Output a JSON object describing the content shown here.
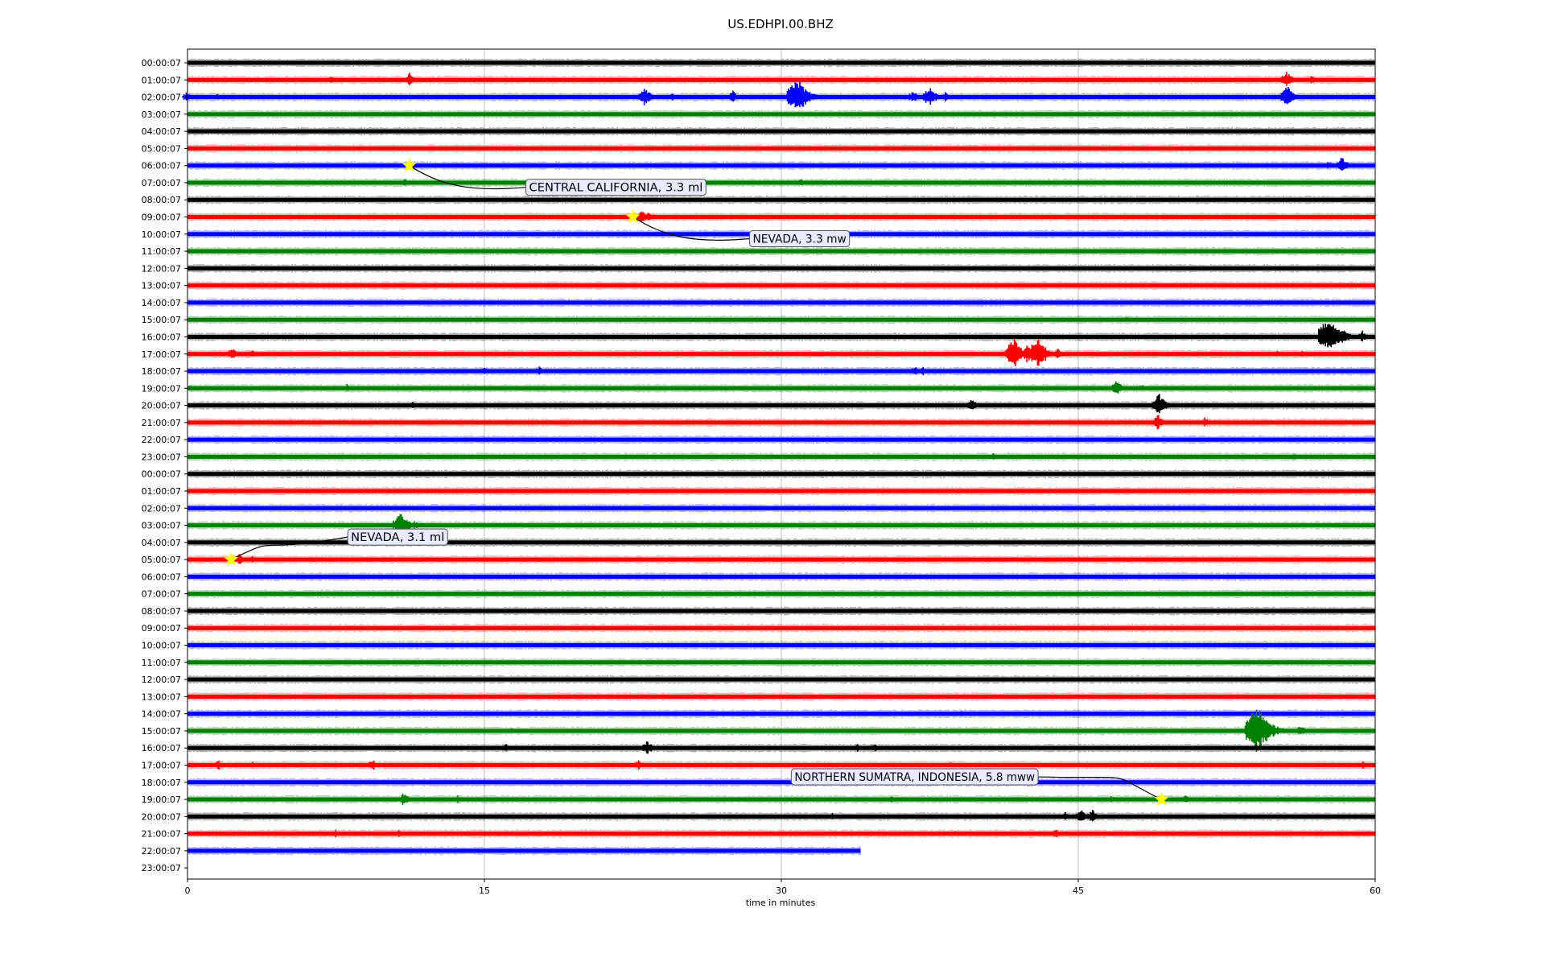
{
  "chart_data": {
    "type": "line",
    "title": "US.EDHPI.00.BHZ",
    "xlabel": "time in minutes",
    "xlim": [
      0,
      60
    ],
    "x_ticks": [
      "0",
      "15",
      "30",
      "45",
      "60"
    ],
    "grid": "vertical",
    "series_colors": [
      "#000000",
      "#ff0000",
      "#0000ff",
      "#008000"
    ],
    "traces": [
      {
        "label": "00:00:07",
        "events": []
      },
      {
        "label": "01:00:07",
        "events": [
          [
            7.4,
            0.5
          ],
          [
            11.4,
            0.8
          ],
          [
            49.9,
            0.3
          ],
          [
            55.7,
            1.0
          ],
          [
            56.9,
            0.5
          ]
        ]
      },
      {
        "label": "02:00:07",
        "events": [
          [
            0.1,
            0.6
          ],
          [
            1.6,
            0.4
          ],
          [
            23.3,
            1.2
          ],
          [
            23.9,
            0.3
          ],
          [
            24.6,
            0.4
          ],
          [
            27.7,
            0.7
          ],
          [
            31.1,
            2.2
          ],
          [
            31.7,
            0.6
          ],
          [
            36.8,
            0.7
          ],
          [
            37.7,
            1.2
          ],
          [
            38.4,
            0.6
          ],
          [
            55.8,
            1.3
          ]
        ]
      },
      {
        "label": "03:00:07",
        "events": []
      },
      {
        "label": "04:00:07",
        "events": []
      },
      {
        "label": "05:00:07",
        "events": []
      },
      {
        "label": "06:00:07",
        "events": [
          [
            11.2,
            0.3
          ],
          [
            57.8,
            0.5
          ],
          [
            58.5,
            1.0
          ]
        ]
      },
      {
        "label": "07:00:07",
        "events": [
          [
            11.1,
            0.4
          ],
          [
            31.1,
            0.4
          ]
        ]
      },
      {
        "label": "08:00:07",
        "events": []
      },
      {
        "label": "09:00:07",
        "events": [
          [
            22.5,
            0.3
          ],
          [
            23.1,
            0.8
          ],
          [
            23.4,
            0.5
          ]
        ]
      },
      {
        "label": "10:00:07",
        "events": []
      },
      {
        "label": "11:00:07",
        "events": []
      },
      {
        "label": "12:00:07",
        "events": []
      },
      {
        "label": "13:00:07",
        "events": []
      },
      {
        "label": "14:00:07",
        "events": []
      },
      {
        "label": "15:00:07",
        "events": [
          [
            47.6,
            0.4
          ],
          [
            48.8,
            0.3
          ]
        ]
      },
      {
        "label": "16:00:07",
        "events": [
          [
            58.0,
            2.4
          ],
          [
            58.6,
            0.8
          ],
          [
            59.5,
            0.7
          ]
        ]
      },
      {
        "label": "17:00:07",
        "events": [
          [
            2.4,
            0.8
          ],
          [
            3.4,
            0.5
          ],
          [
            42.0,
            1.8
          ],
          [
            42.6,
            1.1
          ],
          [
            43.2,
            1.9
          ],
          [
            44.1,
            0.6
          ],
          [
            53.4,
            0.4
          ],
          [
            55.2,
            0.5
          ],
          [
            56.4,
            0.4
          ]
        ]
      },
      {
        "label": "18:00:07",
        "events": [
          [
            15.1,
            0.5
          ],
          [
            17.9,
            0.6
          ],
          [
            36.9,
            0.6
          ],
          [
            37.3,
            0.5
          ]
        ]
      },
      {
        "label": "19:00:07",
        "events": [
          [
            0.3,
            0.4
          ],
          [
            8.2,
            0.5
          ],
          [
            47.1,
            0.9
          ],
          [
            48.3,
            0.4
          ]
        ]
      },
      {
        "label": "20:00:07",
        "events": [
          [
            11.5,
            0.4
          ],
          [
            39.8,
            0.8
          ],
          [
            49.3,
            1.3
          ]
        ]
      },
      {
        "label": "21:00:07",
        "events": [
          [
            49.2,
            0.9
          ],
          [
            51.5,
            0.6
          ]
        ]
      },
      {
        "label": "22:00:07",
        "events": [
          [
            20.5,
            0.4
          ]
        ]
      },
      {
        "label": "23:00:07",
        "events": [
          [
            40.8,
            0.4
          ],
          [
            56.0,
            0.4
          ]
        ]
      },
      {
        "label": "00:00:07",
        "events": [
          [
            27.0,
            0.3
          ]
        ]
      },
      {
        "label": "01:00:07",
        "events": [
          [
            3.0,
            0.4
          ]
        ]
      },
      {
        "label": "02:00:07",
        "events": [
          [
            17.9,
            0.3
          ],
          [
            30.6,
            0.3
          ]
        ]
      },
      {
        "label": "03:00:07",
        "events": [
          [
            11.0,
            1.5
          ],
          [
            11.6,
            0.5
          ]
        ]
      },
      {
        "label": "04:00:07",
        "events": []
      },
      {
        "label": "05:00:07",
        "events": [
          [
            2.2,
            0.3
          ],
          [
            2.8,
            0.7
          ],
          [
            3.4,
            0.4
          ]
        ]
      },
      {
        "label": "06:00:07",
        "events": []
      },
      {
        "label": "07:00:07",
        "events": []
      },
      {
        "label": "08:00:07",
        "events": []
      },
      {
        "label": "09:00:07",
        "events": []
      },
      {
        "label": "10:00:07",
        "events": []
      },
      {
        "label": "11:00:07",
        "events": []
      },
      {
        "label": "12:00:07",
        "events": []
      },
      {
        "label": "13:00:07",
        "events": []
      },
      {
        "label": "14:00:07",
        "events": [
          [
            39.2,
            0.3
          ]
        ]
      },
      {
        "label": "15:00:07",
        "events": [
          [
            16.5,
            0.4
          ],
          [
            20.0,
            0.3
          ],
          [
            54.1,
            1.4
          ],
          [
            54.4,
            2.8
          ],
          [
            55.0,
            0.8
          ],
          [
            56.4,
            0.7
          ]
        ]
      },
      {
        "label": "16:00:07",
        "events": [
          [
            16.2,
            0.5
          ],
          [
            23.4,
            0.9
          ],
          [
            34.0,
            0.5
          ],
          [
            34.8,
            0.6
          ]
        ]
      },
      {
        "label": "17:00:07",
        "events": [
          [
            1.7,
            0.6
          ],
          [
            3.4,
            0.4
          ],
          [
            9.5,
            0.7
          ],
          [
            22.9,
            0.6
          ],
          [
            38.7,
            0.4
          ],
          [
            59.5,
            0.4
          ]
        ]
      },
      {
        "label": "18:00:07",
        "events": []
      },
      {
        "label": "19:00:07",
        "events": [
          [
            11.1,
            0.8
          ],
          [
            13.8,
            0.5
          ],
          [
            35.7,
            0.4
          ],
          [
            42.1,
            0.4
          ],
          [
            46.8,
            0.5
          ],
          [
            49.2,
            0.3
          ],
          [
            50.6,
            0.6
          ],
          [
            57.7,
            0.3
          ]
        ]
      },
      {
        "label": "20:00:07",
        "events": [
          [
            32.7,
            0.4
          ],
          [
            44.5,
            0.5
          ],
          [
            45.3,
            0.8
          ],
          [
            45.9,
            0.8
          ]
        ]
      },
      {
        "label": "21:00:07",
        "events": [
          [
            4.8,
            0.4
          ],
          [
            7.6,
            0.4
          ],
          [
            10.8,
            0.4
          ],
          [
            38.9,
            0.4
          ],
          [
            44.0,
            0.5
          ]
        ]
      },
      {
        "label": "22:00:07",
        "events": [],
        "end_minute": 34.0
      },
      {
        "label": "23:00:07",
        "events": [],
        "end_minute": 0
      }
    ],
    "annotations": [
      {
        "text": "CENTRAL CALIFORNIA, 3.3 ml",
        "row": 6,
        "minute": 11.2
      },
      {
        "text": "NEVADA, 3.3 mw",
        "row": 9,
        "minute": 22.5
      },
      {
        "text": "NEVADA, 3.1 ml",
        "row": 29,
        "minute": 2.2
      },
      {
        "text": "NORTHERN SUMATRA, INDONESIA, 5.8 mww",
        "row": 43,
        "minute": 49.2
      }
    ]
  }
}
